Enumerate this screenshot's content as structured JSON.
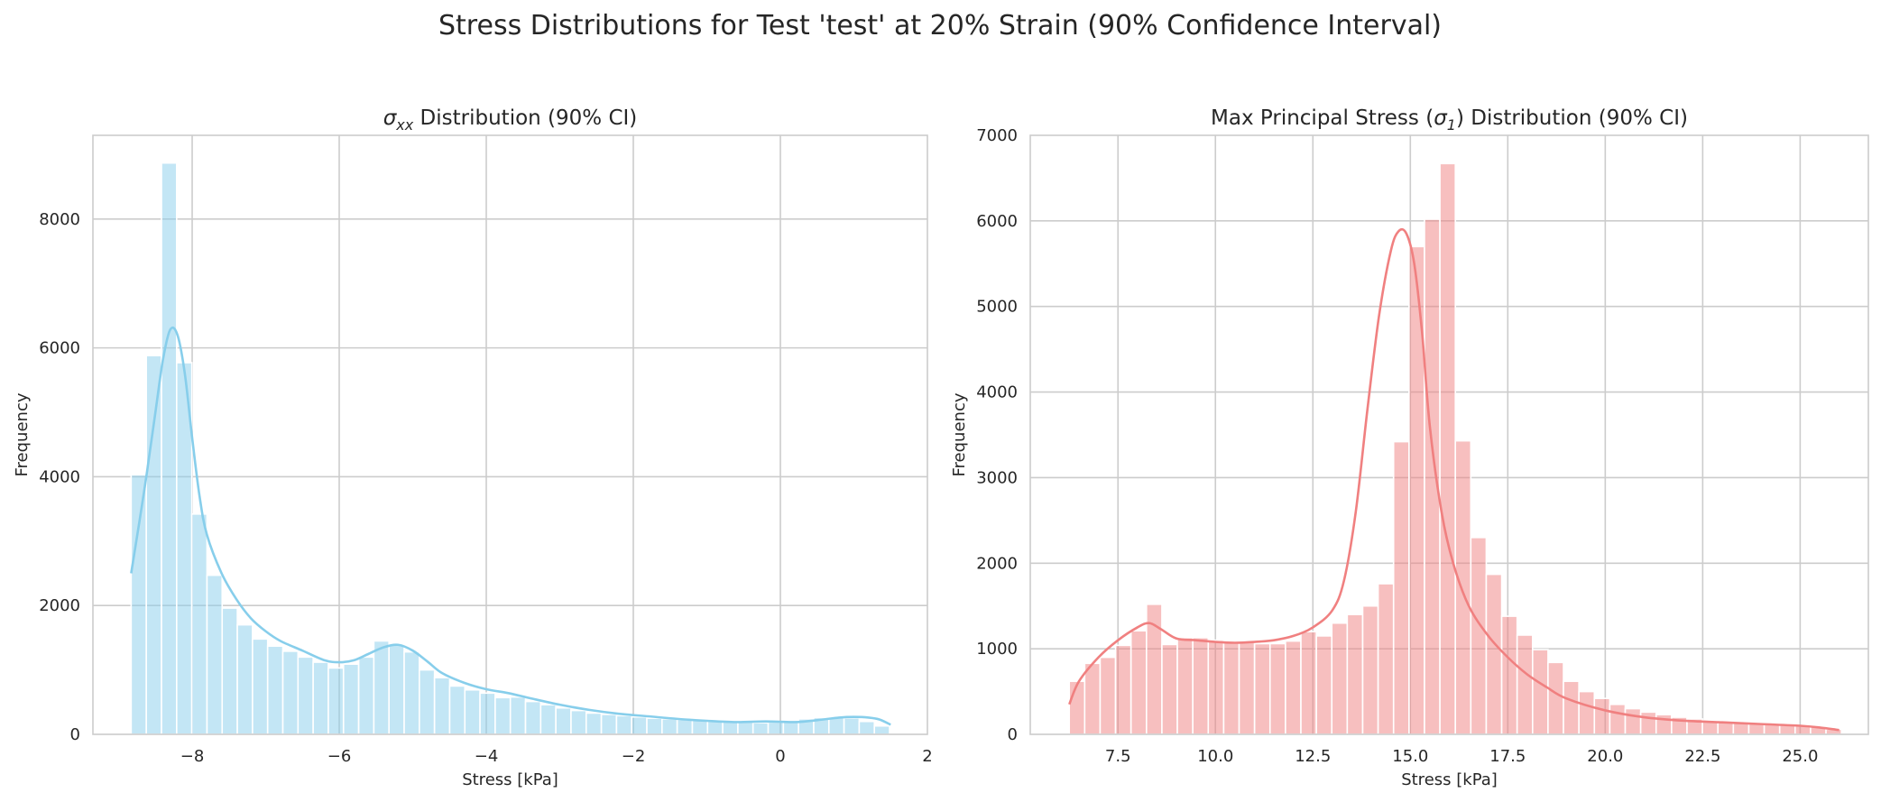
{
  "figure": {
    "suptitle": "Stress Distributions for Test 'test' at 20% Strain (90% Confidence Interval)"
  },
  "chart_data": [
    {
      "type": "bar",
      "title": "σxx Distribution (90% CI)",
      "title_parts": {
        "sym": "σ",
        "sub": "xx",
        "rest": " Distribution (90% CI)"
      },
      "xlabel": "Stress [kPa]",
      "ylabel": "Frequency",
      "xlim": [
        -9.35,
        2.0
      ],
      "ylim": [
        0,
        9300
      ],
      "xticks": [
        -8,
        -6,
        -4,
        -2,
        0,
        2
      ],
      "xtick_labels": [
        "−8",
        "−6",
        "−4",
        "−2",
        "0",
        "2"
      ],
      "yticks": [
        0,
        2000,
        4000,
        6000,
        8000
      ],
      "ytick_labels": [
        "0",
        "2000",
        "4000",
        "6000",
        "8000"
      ],
      "grid": true,
      "bar_color": "#87ceeb",
      "kde_color": "#87ceeb",
      "bin_start": -8.83,
      "bin_width": 0.2063,
      "values": [
        4030,
        5880,
        8870,
        5770,
        3420,
        2470,
        1960,
        1700,
        1480,
        1370,
        1290,
        1200,
        1120,
        1030,
        1090,
        1200,
        1450,
        1400,
        1280,
        1000,
        880,
        750,
        690,
        640,
        570,
        580,
        510,
        460,
        410,
        370,
        330,
        310,
        290,
        270,
        250,
        240,
        230,
        220,
        210,
        200,
        190,
        180,
        190,
        210,
        240,
        260,
        270,
        255,
        200,
        130
      ],
      "kde": {
        "x": [
          -8.83,
          -8.65,
          -8.5,
          -8.4,
          -8.3,
          -8.2,
          -8.1,
          -8.0,
          -7.9,
          -7.8,
          -7.6,
          -7.4,
          -7.2,
          -7.0,
          -6.8,
          -6.5,
          -6.2,
          -6.0,
          -5.8,
          -5.6,
          -5.4,
          -5.2,
          -5.0,
          -4.8,
          -4.6,
          -4.3,
          -4.0,
          -3.7,
          -3.4,
          -3.0,
          -2.6,
          -2.2,
          -1.8,
          -1.4,
          -1.0,
          -0.6,
          -0.2,
          0.2,
          0.5,
          0.8,
          1.0,
          1.2,
          1.35,
          1.5
        ],
        "y": [
          2500,
          3800,
          5000,
          5800,
          6280,
          6200,
          5600,
          4600,
          3700,
          3100,
          2500,
          2100,
          1800,
          1600,
          1450,
          1300,
          1150,
          1120,
          1150,
          1250,
          1350,
          1390,
          1300,
          1130,
          950,
          800,
          700,
          640,
          560,
          460,
          380,
          320,
          280,
          240,
          210,
          190,
          200,
          190,
          220,
          260,
          270,
          260,
          230,
          150
        ]
      }
    },
    {
      "type": "bar",
      "title": "Max Principal Stress (σ1) Distribution (90% CI)",
      "title_parts": {
        "pre": "Max Principal Stress (",
        "sym": "σ",
        "sub": "1",
        "rest": ") Distribution (90% CI)"
      },
      "xlabel": "Stress [kPa]",
      "ylabel": "Frequency",
      "xlim": [
        5.25,
        26.75
      ],
      "ylim": [
        0,
        7000
      ],
      "xticks": [
        7.5,
        10.0,
        12.5,
        15.0,
        17.5,
        20.0,
        22.5,
        25.0
      ],
      "xtick_labels": [
        "7.5",
        "10.0",
        "12.5",
        "15.0",
        "17.5",
        "20.0",
        "22.5",
        "25.0"
      ],
      "yticks": [
        0,
        1000,
        2000,
        3000,
        4000,
        5000,
        6000,
        7000
      ],
      "ytick_labels": [
        "0",
        "1000",
        "2000",
        "3000",
        "4000",
        "5000",
        "6000",
        "7000"
      ],
      "grid": true,
      "bar_color": "#f08080",
      "kde_color": "#f08080",
      "bin_start": 6.25,
      "bin_width": 0.3962,
      "values": [
        620,
        830,
        900,
        1040,
        1210,
        1520,
        1050,
        1130,
        1130,
        1100,
        1080,
        1080,
        1060,
        1060,
        1090,
        1200,
        1150,
        1300,
        1400,
        1500,
        1760,
        3420,
        5700,
        6020,
        6670,
        3430,
        2300,
        1870,
        1380,
        1160,
        990,
        840,
        620,
        500,
        420,
        350,
        300,
        260,
        230,
        200,
        180,
        160,
        150,
        140,
        130,
        120,
        110,
        100,
        90,
        60
      ],
      "kde": {
        "x": [
          6.25,
          6.5,
          7.0,
          7.5,
          8.0,
          8.3,
          8.6,
          9.0,
          9.5,
          10.0,
          10.5,
          11.0,
          11.5,
          12.0,
          12.5,
          13.0,
          13.3,
          13.6,
          13.9,
          14.2,
          14.5,
          14.7,
          14.9,
          15.1,
          15.3,
          15.5,
          15.8,
          16.1,
          16.5,
          17.0,
          17.5,
          18.0,
          18.5,
          19.0,
          20.0,
          21.0,
          22.0,
          23.0,
          24.0,
          25.0,
          25.5,
          26.0
        ],
        "y": [
          350,
          620,
          900,
          1100,
          1250,
          1300,
          1230,
          1120,
          1100,
          1080,
          1070,
          1080,
          1100,
          1150,
          1250,
          1450,
          1800,
          2600,
          3800,
          4900,
          5650,
          5880,
          5850,
          5500,
          4700,
          3600,
          2600,
          2000,
          1500,
          1150,
          900,
          700,
          550,
          420,
          280,
          200,
          160,
          140,
          120,
          100,
          80,
          50
        ]
      }
    }
  ]
}
